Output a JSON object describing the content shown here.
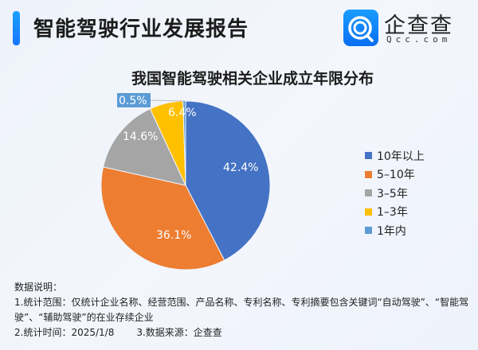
{
  "header": {
    "title": "智能驾驶行业发展报告",
    "logo_text": "企查查",
    "logo_sub": "Qcc.com"
  },
  "chart_data": {
    "type": "pie",
    "title": "我国智能驾驶相关企业成立年限分布",
    "categories": [
      "10年以上",
      "5-10年",
      "3-5年",
      "1-3年",
      "1年内"
    ],
    "values": [
      42.4,
      36.1,
      14.6,
      6.4,
      0.5
    ],
    "labels": [
      "42.4%",
      "36.1%",
      "14.6%",
      "6.4%",
      "0.5%"
    ],
    "colors": [
      "#4472c4",
      "#ed7d31",
      "#a5a5a5",
      "#ffc000",
      "#5b9bd5"
    ],
    "unit": "%",
    "legend_position": "right"
  },
  "legend": [
    {
      "label": "10年以上",
      "color": "#4472c4"
    },
    {
      "label": "5–10年",
      "color": "#ed7d31"
    },
    {
      "label": "3–5年",
      "color": "#a5a5a5"
    },
    {
      "label": "1–3年",
      "color": "#ffc000"
    },
    {
      "label": "1年内",
      "color": "#5b9bd5"
    }
  ],
  "notes": {
    "heading": "数据说明：",
    "line1": "1.统计范围：仅统计企业名称、经营范围、产品名称、专利名称、专利摘要包含关键词“自动驾驶”、“智能驾",
    "line2": "驶”、“辅助驾驶”的在业存续企业",
    "line3a": "2.统计时间：2025/1/8",
    "line3b": "3.数据来源：企查查"
  }
}
